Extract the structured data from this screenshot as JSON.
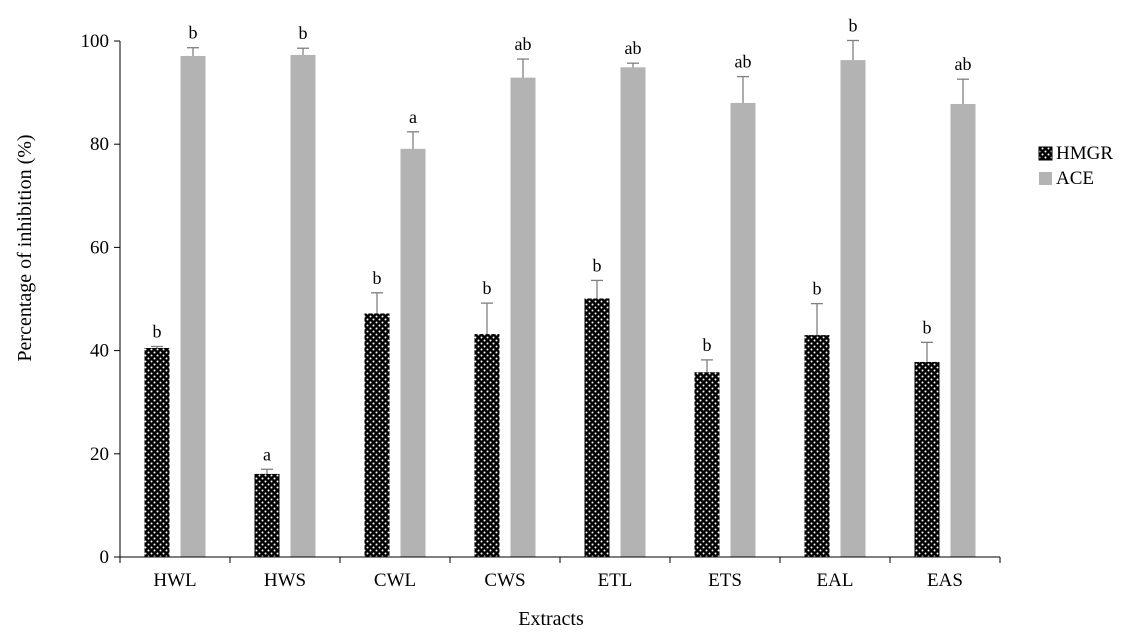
{
  "colors": {
    "hmgr_fill": "#000000",
    "hmgr_dots": "#ffffff",
    "ace_fill": "#b3b3b3",
    "error_bar": "#7f7f7f",
    "axis": "#000000"
  },
  "chart_data": {
    "type": "bar",
    "title": "",
    "xlabel": "Extracts",
    "ylabel": "Percentage of inhibition (%)",
    "ylim": [
      0,
      100
    ],
    "yticks": [
      0,
      20,
      40,
      60,
      80,
      100
    ],
    "grid": false,
    "legend_position": "right",
    "categories": [
      "HWL",
      "HWS",
      "CWL",
      "CWS",
      "ETL",
      "ETS",
      "EAL",
      "EAS"
    ],
    "series": [
      {
        "name": "HMGR",
        "pattern": "dotted",
        "values": [
          40.5,
          16.1,
          47.2,
          43.2,
          50.1,
          35.8,
          43.0,
          37.8
        ],
        "errors": [
          0.3,
          0.9,
          4.0,
          6.0,
          3.5,
          2.4,
          6.1,
          3.8
        ],
        "labels": [
          "b",
          "a",
          "b",
          "b",
          "b",
          "b",
          "b",
          "b"
        ]
      },
      {
        "name": "ACE",
        "pattern": "solid",
        "values": [
          97.1,
          97.3,
          79.1,
          92.9,
          94.9,
          88.0,
          96.3,
          87.8
        ],
        "errors": [
          1.6,
          1.3,
          3.3,
          3.6,
          0.8,
          5.1,
          3.8,
          4.8
        ],
        "labels": [
          "b",
          "b",
          "a",
          "ab",
          "ab",
          "ab",
          "b",
          "ab"
        ]
      }
    ]
  }
}
